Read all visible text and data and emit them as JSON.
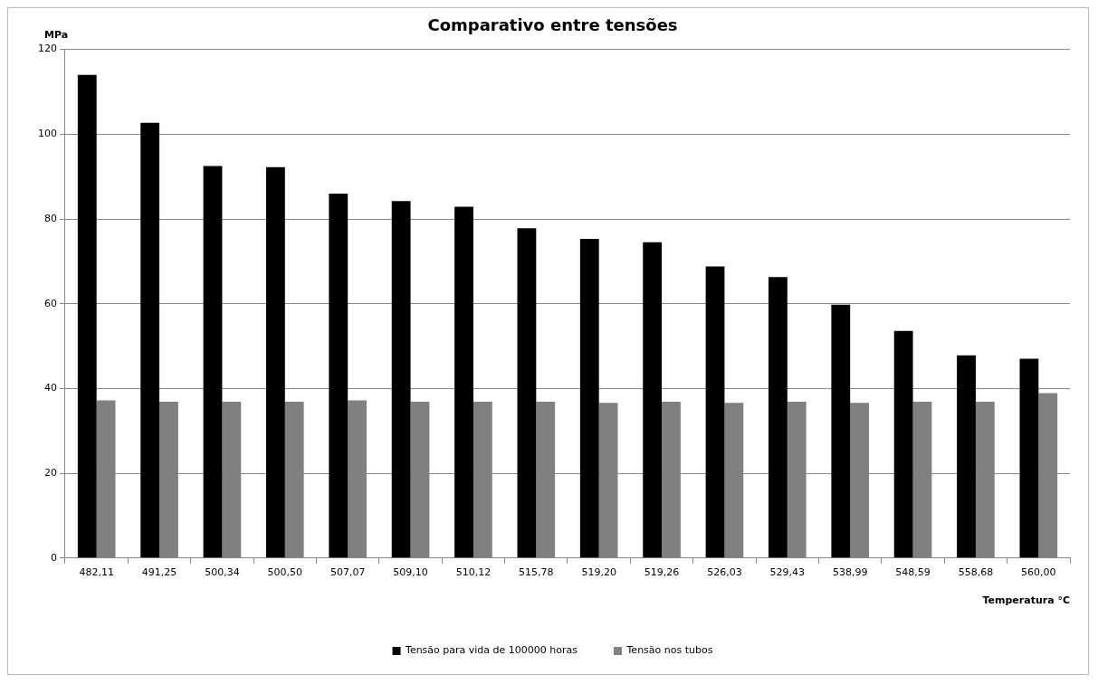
{
  "chart_data": {
    "type": "bar",
    "title": "Comparativo entre tensões",
    "ylabel": "MPa",
    "xlabel": "Temperatura °C",
    "categories": [
      "482,11",
      "491,25",
      "500,34",
      "500,50",
      "507,07",
      "509,10",
      "510,12",
      "515,78",
      "519,20",
      "519,26",
      "526,03",
      "529,43",
      "538,99",
      "548,59",
      "558,68",
      "560,00"
    ],
    "series": [
      {
        "name": "Tensão para vida de 100000 horas",
        "color": "#000000",
        "values": [
          114,
          102.7,
          92.5,
          92.2,
          86,
          84.2,
          82.9,
          77.8,
          75.3,
          74.5,
          68.8,
          66.3,
          59.8,
          53.6,
          47.8,
          47
        ]
      },
      {
        "name": "Tensão nos tubos",
        "color": "#808080",
        "values": [
          37.2,
          36.9,
          36.9,
          36.9,
          37.2,
          36.9,
          36.9,
          36.9,
          36.6,
          36.9,
          36.6,
          36.9,
          36.6,
          36.9,
          36.9,
          38.9
        ]
      }
    ],
    "ylim": [
      0,
      120
    ],
    "yticks": [
      0,
      20,
      40,
      60,
      80,
      100,
      120
    ],
    "grid": "y",
    "legend": "bottom"
  }
}
